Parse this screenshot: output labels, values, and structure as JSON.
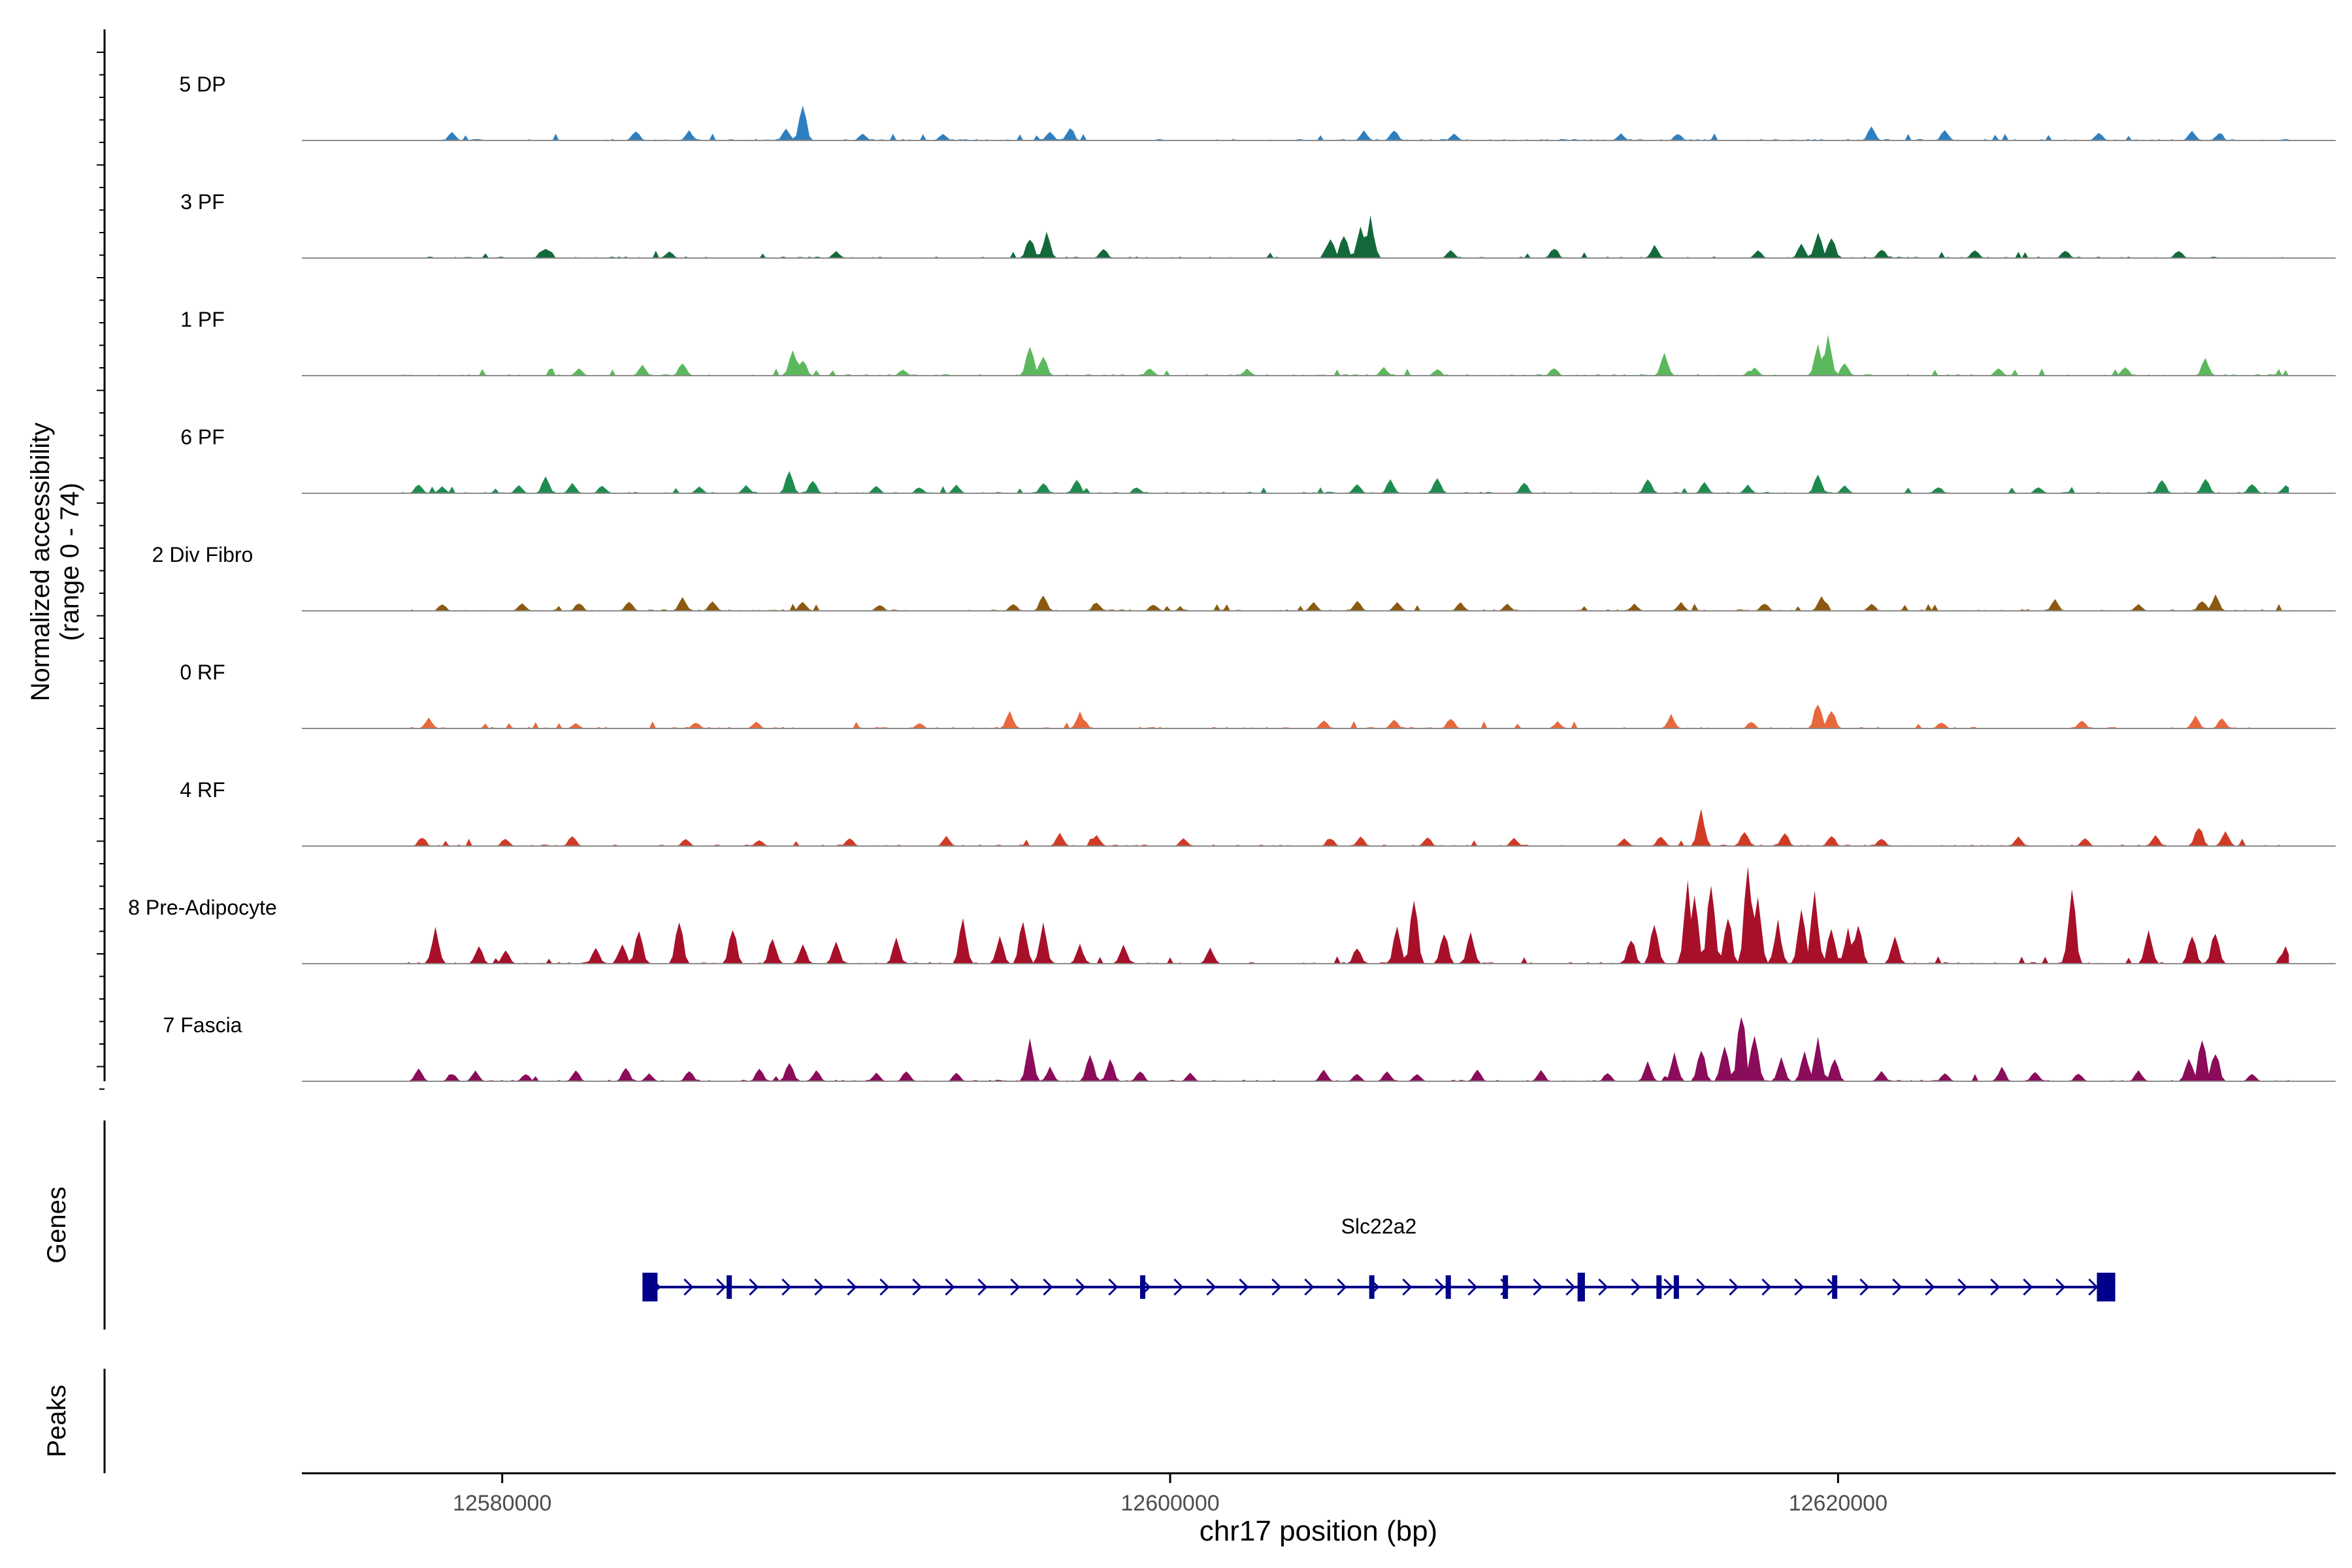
{
  "chart_data": {
    "type": "area",
    "title": "",
    "chromosome": "chr17",
    "xlabel": "chr17 position (bp)",
    "ylabel": "Normalized accessibility",
    "ylabel_range": "(range 0 - 74)",
    "xlim": [
      12574000,
      12634900
    ],
    "ylim": [
      0,
      74
    ],
    "x_ticks": [
      {
        "value": 12580000,
        "label": "12580000"
      },
      {
        "value": 12600000,
        "label": "12600000"
      },
      {
        "value": 12620000,
        "label": "12620000"
      }
    ],
    "bin_size_bp": 100,
    "data_start_bp": 12577000,
    "data_end_bp": 12633500,
    "series": [
      {
        "name": "5 DP",
        "color": "#2e7fc0",
        "peaks": [
          [
            12578500,
            6
          ],
          [
            12584000,
            8
          ],
          [
            12585600,
            7
          ],
          [
            12588500,
            9
          ],
          [
            12589000,
            24
          ],
          [
            12590800,
            5
          ],
          [
            12593200,
            5
          ],
          [
            12596400,
            6
          ],
          [
            12597000,
            10
          ],
          [
            12605800,
            7
          ],
          [
            12606700,
            8
          ],
          [
            12608500,
            5
          ],
          [
            12613500,
            5
          ],
          [
            12615200,
            5
          ],
          [
            12621000,
            10
          ],
          [
            12623200,
            7
          ],
          [
            12627800,
            6
          ],
          [
            12630600,
            7
          ],
          [
            12631400,
            5
          ]
        ]
      },
      {
        "name": "3 PF",
        "color": "#13693a",
        "peaks": [
          [
            12581300,
            8
          ],
          [
            12585000,
            5
          ],
          [
            12590000,
            5
          ],
          [
            12595800,
            16
          ],
          [
            12596300,
            18
          ],
          [
            12598000,
            7
          ],
          [
            12604800,
            14
          ],
          [
            12605200,
            18
          ],
          [
            12605700,
            24
          ],
          [
            12606000,
            30
          ],
          [
            12608400,
            6
          ],
          [
            12611500,
            8
          ],
          [
            12614500,
            9
          ],
          [
            12617600,
            6
          ],
          [
            12618900,
            10
          ],
          [
            12619400,
            20
          ],
          [
            12619800,
            16
          ],
          [
            12621300,
            7
          ],
          [
            12624100,
            6
          ],
          [
            12626800,
            6
          ],
          [
            12630200,
            6
          ]
        ]
      },
      {
        "name": "1 PF",
        "color": "#5cb85c",
        "peaks": [
          [
            12582300,
            5
          ],
          [
            12584200,
            8
          ],
          [
            12585400,
            10
          ],
          [
            12588700,
            18
          ],
          [
            12589000,
            12
          ],
          [
            12592000,
            5
          ],
          [
            12595800,
            24
          ],
          [
            12596200,
            14
          ],
          [
            12599400,
            6
          ],
          [
            12602300,
            5
          ],
          [
            12606400,
            6
          ],
          [
            12608000,
            5
          ],
          [
            12611500,
            6
          ],
          [
            12614800,
            16
          ],
          [
            12617500,
            6
          ],
          [
            12619400,
            22
          ],
          [
            12619700,
            28
          ],
          [
            12620200,
            10
          ],
          [
            12624800,
            6
          ],
          [
            12628600,
            6
          ],
          [
            12631000,
            12
          ]
        ]
      },
      {
        "name": "6 PF",
        "color": "#1f8c4f",
        "peaks": [
          [
            12577500,
            7
          ],
          [
            12578200,
            5
          ],
          [
            12580500,
            6
          ],
          [
            12581300,
            12
          ],
          [
            12582100,
            7
          ],
          [
            12583000,
            6
          ],
          [
            12585900,
            5
          ],
          [
            12587300,
            6
          ],
          [
            12588600,
            16
          ],
          [
            12589300,
            10
          ],
          [
            12591200,
            6
          ],
          [
            12592500,
            5
          ],
          [
            12593600,
            6
          ],
          [
            12596200,
            8
          ],
          [
            12597200,
            10
          ],
          [
            12599000,
            5
          ],
          [
            12605600,
            8
          ],
          [
            12606600,
            10
          ],
          [
            12608000,
            12
          ],
          [
            12610600,
            8
          ],
          [
            12614300,
            12
          ],
          [
            12616000,
            8
          ],
          [
            12617300,
            6
          ],
          [
            12619400,
            14
          ],
          [
            12620200,
            6
          ],
          [
            12623000,
            5
          ],
          [
            12626000,
            5
          ],
          [
            12629700,
            10
          ],
          [
            12631000,
            12
          ],
          [
            12632400,
            8
          ],
          [
            12633400,
            6
          ]
        ]
      },
      {
        "name": "2 Div Fibro",
        "color": "#8b5a10",
        "peaks": [
          [
            12578200,
            5
          ],
          [
            12580600,
            6
          ],
          [
            12582300,
            6
          ],
          [
            12583800,
            8
          ],
          [
            12585400,
            10
          ],
          [
            12586300,
            7
          ],
          [
            12589000,
            7
          ],
          [
            12591300,
            5
          ],
          [
            12595300,
            6
          ],
          [
            12596200,
            12
          ],
          [
            12597800,
            7
          ],
          [
            12599500,
            5
          ],
          [
            12604300,
            6
          ],
          [
            12605600,
            7
          ],
          [
            12606800,
            7
          ],
          [
            12608700,
            6
          ],
          [
            12610100,
            5
          ],
          [
            12613900,
            5
          ],
          [
            12615300,
            6
          ],
          [
            12617800,
            6
          ],
          [
            12619500,
            10
          ],
          [
            12621000,
            5
          ],
          [
            12626500,
            8
          ],
          [
            12629000,
            5
          ],
          [
            12630900,
            8
          ],
          [
            12631300,
            12
          ]
        ]
      },
      {
        "name": "0 RF",
        "color": "#e8683d",
        "peaks": [
          [
            12577800,
            8
          ],
          [
            12582200,
            4
          ],
          [
            12585800,
            5
          ],
          [
            12587600,
            5
          ],
          [
            12592500,
            4
          ],
          [
            12595200,
            12
          ],
          [
            12597300,
            12
          ],
          [
            12604600,
            6
          ],
          [
            12606700,
            7
          ],
          [
            12608400,
            8
          ],
          [
            12611600,
            5
          ],
          [
            12615000,
            10
          ],
          [
            12617400,
            5
          ],
          [
            12619400,
            20
          ],
          [
            12619800,
            14
          ],
          [
            12623100,
            5
          ],
          [
            12627300,
            6
          ],
          [
            12630700,
            9
          ],
          [
            12631500,
            8
          ]
        ]
      },
      {
        "name": "4 RF",
        "color": "#d13b25",
        "peaks": [
          [
            12577600,
            7
          ],
          [
            12580100,
            6
          ],
          [
            12582100,
            8
          ],
          [
            12585500,
            6
          ],
          [
            12587700,
            5
          ],
          [
            12590400,
            6
          ],
          [
            12593300,
            7
          ],
          [
            12596700,
            10
          ],
          [
            12597800,
            8
          ],
          [
            12600400,
            6
          ],
          [
            12604800,
            6
          ],
          [
            12605700,
            7
          ],
          [
            12607700,
            6
          ],
          [
            12610300,
            6
          ],
          [
            12613600,
            6
          ],
          [
            12614700,
            8
          ],
          [
            12615900,
            26
          ],
          [
            12617200,
            12
          ],
          [
            12618400,
            10
          ],
          [
            12619800,
            8
          ],
          [
            12621300,
            6
          ],
          [
            12625400,
            7
          ],
          [
            12627400,
            6
          ],
          [
            12629500,
            8
          ],
          [
            12630800,
            16
          ],
          [
            12631600,
            12
          ]
        ]
      },
      {
        "name": "8 Pre-Adipocyte",
        "color": "#a8102a",
        "peaks": [
          [
            12578000,
            26
          ],
          [
            12579300,
            14
          ],
          [
            12580100,
            10
          ],
          [
            12582800,
            12
          ],
          [
            12583600,
            14
          ],
          [
            12584100,
            26
          ],
          [
            12585300,
            32
          ],
          [
            12586900,
            28
          ],
          [
            12588100,
            20
          ],
          [
            12589000,
            14
          ],
          [
            12590000,
            16
          ],
          [
            12591800,
            18
          ],
          [
            12593800,
            34
          ],
          [
            12594900,
            20
          ],
          [
            12595600,
            34
          ],
          [
            12596200,
            30
          ],
          [
            12597300,
            14
          ],
          [
            12598600,
            14
          ],
          [
            12601200,
            12
          ],
          [
            12605600,
            12
          ],
          [
            12606800,
            26
          ],
          [
            12607300,
            48
          ],
          [
            12608200,
            26
          ],
          [
            12609000,
            24
          ],
          [
            12613800,
            20
          ],
          [
            12614500,
            32
          ],
          [
            12615500,
            58
          ],
          [
            12615700,
            48
          ],
          [
            12616200,
            60
          ],
          [
            12616700,
            40
          ],
          [
            12617300,
            74
          ],
          [
            12617600,
            50
          ],
          [
            12618200,
            30
          ],
          [
            12618900,
            40
          ],
          [
            12619300,
            52
          ],
          [
            12619800,
            26
          ],
          [
            12620300,
            24
          ],
          [
            12620600,
            30
          ],
          [
            12621700,
            20
          ],
          [
            12627000,
            55
          ],
          [
            12629300,
            26
          ],
          [
            12630600,
            24
          ],
          [
            12631300,
            26
          ],
          [
            12633400,
            12
          ]
        ]
      },
      {
        "name": "7 Fascia",
        "color": "#8a0c5a",
        "peaks": [
          [
            12577500,
            10
          ],
          [
            12578500,
            6
          ],
          [
            12579200,
            8
          ],
          [
            12580700,
            6
          ],
          [
            12582200,
            8
          ],
          [
            12583700,
            10
          ],
          [
            12584400,
            6
          ],
          [
            12585600,
            8
          ],
          [
            12587700,
            10
          ],
          [
            12588600,
            16
          ],
          [
            12589400,
            8
          ],
          [
            12591200,
            6
          ],
          [
            12592100,
            8
          ],
          [
            12593600,
            6
          ],
          [
            12595800,
            30
          ],
          [
            12596400,
            10
          ],
          [
            12597600,
            22
          ],
          [
            12598200,
            16
          ],
          [
            12599100,
            8
          ],
          [
            12600600,
            6
          ],
          [
            12604600,
            8
          ],
          [
            12605600,
            6
          ],
          [
            12606500,
            8
          ],
          [
            12607400,
            6
          ],
          [
            12609200,
            8
          ],
          [
            12611100,
            8
          ],
          [
            12613100,
            6
          ],
          [
            12614300,
            14
          ],
          [
            12615100,
            20
          ],
          [
            12615900,
            26
          ],
          [
            12616600,
            30
          ],
          [
            12617100,
            56
          ],
          [
            12617500,
            40
          ],
          [
            12618300,
            18
          ],
          [
            12619000,
            22
          ],
          [
            12619400,
            32
          ],
          [
            12619900,
            18
          ],
          [
            12621300,
            8
          ],
          [
            12623200,
            6
          ],
          [
            12624900,
            10
          ],
          [
            12625900,
            8
          ],
          [
            12627200,
            6
          ],
          [
            12629000,
            8
          ],
          [
            12630500,
            16
          ],
          [
            12630900,
            32
          ],
          [
            12631300,
            24
          ],
          [
            12632400,
            6
          ]
        ]
      }
    ],
    "gene": {
      "name": "Slc22a2",
      "strand": "+",
      "start": 12584200,
      "end": 12628300,
      "exons": [
        [
          12584200,
          12584650
        ],
        [
          12586720,
          12586820
        ],
        [
          12599100,
          12599220
        ],
        [
          12605960,
          12606080
        ],
        [
          12608250,
          12608360
        ],
        [
          12609960,
          12610060
        ],
        [
          12612200,
          12612420
        ],
        [
          12614560,
          12614660
        ],
        [
          12615080,
          12615190
        ],
        [
          12619820,
          12619920
        ],
        [
          12627750,
          12628300
        ]
      ]
    },
    "peaks_track": {
      "label": "Peaks",
      "regions": []
    }
  },
  "tracks_panel": {
    "genes_label": "Genes",
    "peaks_label": "Peaks"
  }
}
